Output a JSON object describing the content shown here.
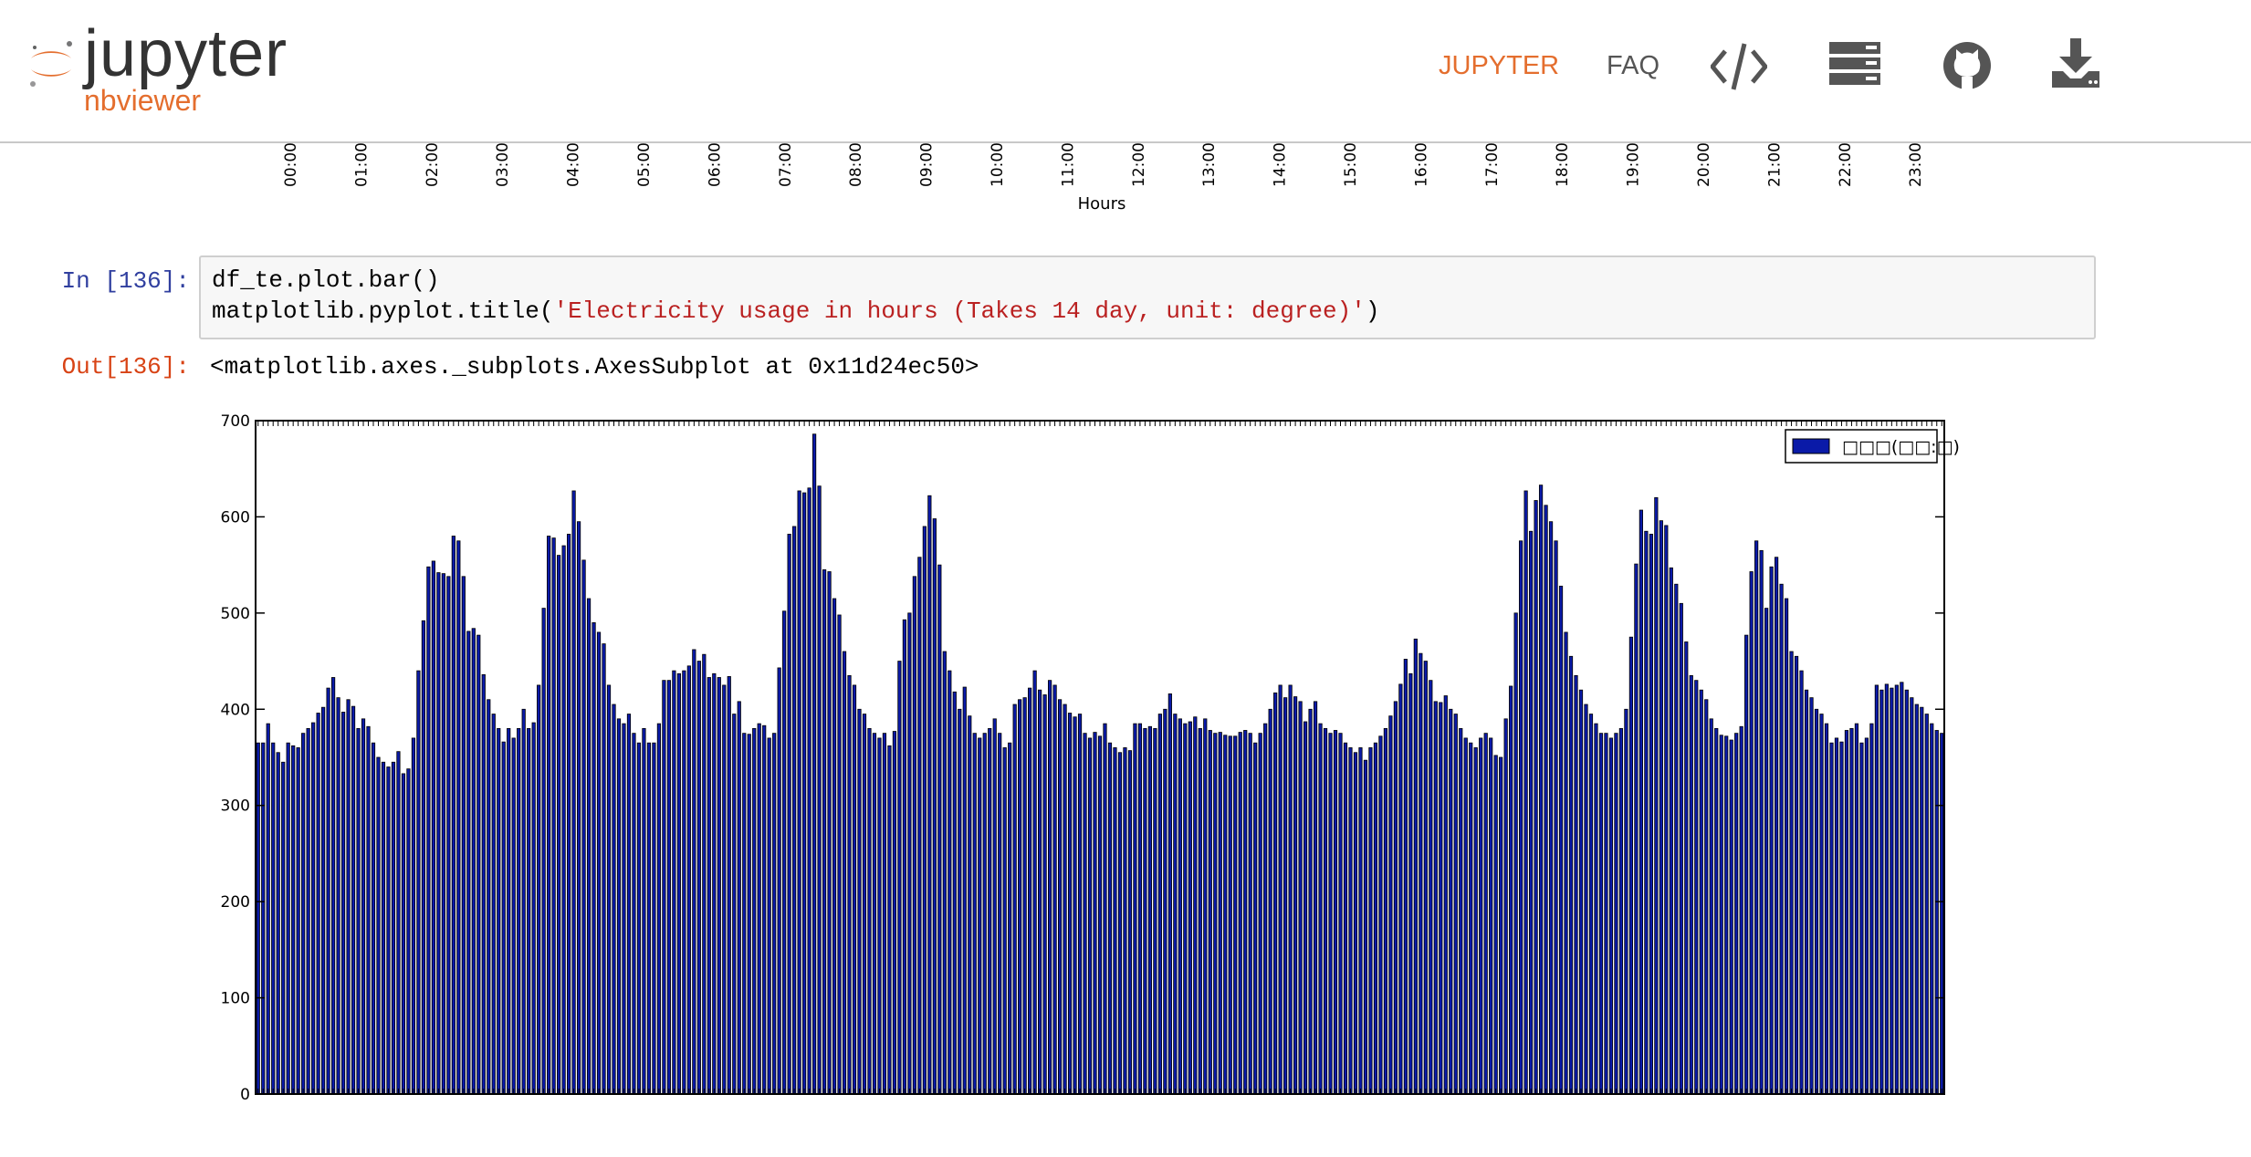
{
  "navbar": {
    "logo_word": "jupyter",
    "logo_sub": "nbviewer",
    "links": [
      {
        "label": "JUPYTER"
      },
      {
        "label": "FAQ"
      }
    ],
    "icons": [
      "code-icon",
      "server-icon",
      "github-icon",
      "download-icon"
    ],
    "accent_color": "#e46e2e"
  },
  "prev_output": {
    "hour_ticks": [
      "00:00",
      "01:00",
      "02:00",
      "03:00",
      "04:00",
      "05:00",
      "06:00",
      "07:00",
      "08:00",
      "09:00",
      "10:00",
      "11:00",
      "12:00",
      "13:00",
      "14:00",
      "15:00",
      "16:00",
      "17:00",
      "18:00",
      "19:00",
      "20:00",
      "21:00",
      "22:00",
      "23:00"
    ],
    "xlabel": "Hours"
  },
  "cell": {
    "in_prompt": "In [136]:",
    "out_prompt": "Out[136]:",
    "code_line1": "df_te.plot.bar()",
    "code_line2_prefix": "matplotlib.pyplot.title(",
    "code_line2_string": "'Electricity usage in hours (Takes 14 day, unit: degree)'",
    "code_line2_suffix": ")",
    "output_text": "<matplotlib.axes._subplots.AxesSubplot at 0x11d24ec50>"
  },
  "chart_data": {
    "type": "bar",
    "title": "",
    "xlabel": "",
    "ylabel": "",
    "ylim": [
      0,
      700
    ],
    "yticks": [
      0,
      100,
      200,
      300,
      400,
      500,
      600,
      700
    ],
    "legend": {
      "label": "□□□(□□:□)",
      "placement": "top-right"
    },
    "bar_color": "#0a1aa8",
    "series": [
      {
        "name": "□□□(□□:□)",
        "values": [
          365,
          365,
          385,
          365,
          355,
          345,
          365,
          362,
          360,
          375,
          380,
          386,
          396,
          402,
          422,
          433,
          412,
          397,
          410,
          403,
          380,
          390,
          382,
          365,
          350,
          345,
          340,
          345,
          356,
          333,
          338,
          370,
          440,
          492,
          548,
          554,
          542,
          541,
          538,
          580,
          575,
          538,
          481,
          484,
          477,
          436,
          410,
          395,
          380,
          366,
          380,
          370,
          380,
          400,
          380,
          386,
          425,
          505,
          580,
          578,
          560,
          570,
          582,
          627,
          595,
          555,
          515,
          490,
          480,
          468,
          425,
          405,
          390,
          385,
          395,
          375,
          365,
          380,
          365,
          365,
          385,
          430,
          430,
          440,
          437,
          440,
          445,
          462,
          450,
          457,
          433,
          437,
          433,
          425,
          434,
          395,
          408,
          375,
          374,
          380,
          385,
          383,
          370,
          375,
          443,
          502,
          582,
          590,
          627,
          625,
          630,
          686,
          632,
          545,
          543,
          515,
          498,
          460,
          435,
          425,
          400,
          395,
          380,
          375,
          370,
          375,
          362,
          377,
          450,
          493,
          500,
          538,
          558,
          590,
          622,
          598,
          550,
          460,
          440,
          418,
          400,
          423,
          393,
          375,
          370,
          375,
          380,
          390,
          375,
          360,
          365,
          405,
          410,
          412,
          422,
          440,
          420,
          415,
          430,
          425,
          410,
          405,
          396,
          392,
          395,
          375,
          370,
          376,
          372,
          385,
          365,
          360,
          355,
          360,
          357,
          385,
          385,
          380,
          382,
          380,
          395,
          400,
          416,
          395,
          390,
          385,
          387,
          392,
          380,
          390,
          378,
          375,
          376,
          373,
          372,
          372,
          376,
          378,
          375,
          365,
          375,
          385,
          400,
          417,
          425,
          412,
          425,
          413,
          408,
          387,
          400,
          408,
          385,
          380,
          375,
          378,
          375,
          365,
          360,
          355,
          360,
          347,
          360,
          365,
          372,
          380,
          393,
          408,
          426,
          452,
          437,
          473,
          458,
          450,
          430,
          408,
          407,
          414,
          400,
          395,
          380,
          370,
          365,
          360,
          370,
          375,
          370,
          352,
          350,
          390,
          424,
          500,
          575,
          627,
          585,
          617,
          633,
          612,
          595,
          575,
          528,
          480,
          455,
          435,
          420,
          405,
          395,
          385,
          375,
          375,
          370,
          375,
          380,
          400,
          475,
          551,
          607,
          585,
          582,
          620,
          596,
          591,
          547,
          530,
          510,
          470,
          435,
          430,
          420,
          410,
          390,
          380,
          373,
          372,
          368,
          375,
          382,
          477,
          543,
          575,
          565,
          505,
          548,
          558,
          530,
          515,
          460,
          455,
          440,
          420,
          412,
          400,
          395,
          385,
          365,
          370,
          366,
          378,
          380,
          385,
          365,
          370,
          385,
          425,
          420,
          426,
          422,
          425,
          428,
          420,
          412,
          405,
          402,
          395,
          385,
          378,
          375
        ]
      }
    ]
  }
}
